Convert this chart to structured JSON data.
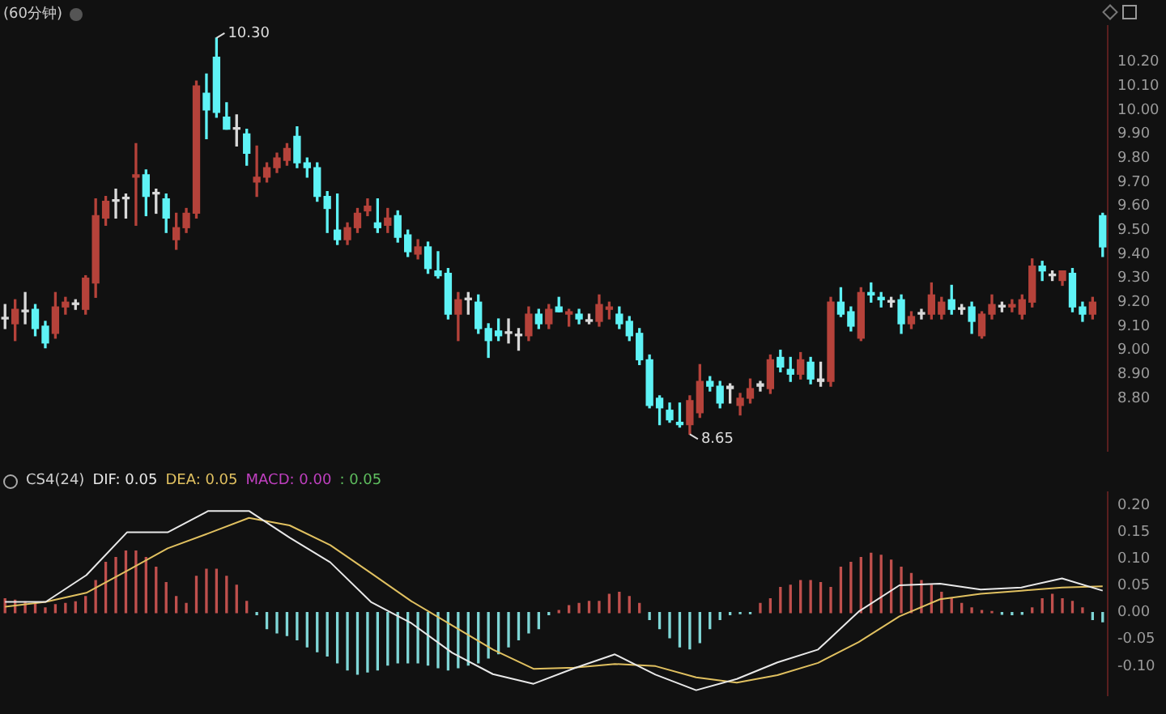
{
  "chart_data": [
    {
      "type": "candlestick",
      "title": "(60分钟)",
      "categories": [
        null,
        null,
        null,
        null,
        null,
        null,
        null,
        null,
        null,
        null,
        null,
        null,
        null,
        null,
        null,
        null,
        null,
        null,
        null,
        null,
        null,
        null,
        null,
        null,
        null,
        null,
        null,
        null,
        null,
        null,
        null,
        null,
        null,
        null,
        null,
        null,
        null,
        null,
        null,
        null,
        null,
        null,
        null,
        null,
        null,
        null,
        null,
        null,
        null,
        null,
        null,
        null,
        null,
        null,
        null,
        null,
        null,
        null,
        null,
        null,
        null,
        null,
        null,
        null,
        null,
        null,
        null,
        null,
        null,
        null,
        null,
        null,
        null,
        null,
        null,
        null,
        null,
        null,
        null,
        null,
        null,
        null,
        null,
        null,
        null,
        null,
        null,
        null,
        null,
        null,
        null,
        null,
        null,
        null,
        null,
        null,
        null,
        null,
        null,
        null,
        null,
        null,
        null,
        null,
        null,
        null,
        null,
        null,
        null,
        null
      ],
      "ohlc": [
        [
          9.13,
          9.19,
          9.09,
          9.13
        ],
        [
          9.11,
          9.21,
          9.04,
          9.17
        ],
        [
          9.16,
          9.24,
          9.11,
          9.16
        ],
        [
          9.17,
          9.19,
          9.06,
          9.09
        ],
        [
          9.1,
          9.12,
          9.01,
          9.03
        ],
        [
          9.07,
          9.24,
          9.05,
          9.18
        ],
        [
          9.18,
          9.22,
          9.15,
          9.2
        ],
        [
          9.19,
          9.21,
          9.17,
          9.19
        ],
        [
          9.17,
          9.31,
          9.15,
          9.3
        ],
        [
          9.28,
          9.63,
          9.22,
          9.56
        ],
        [
          9.55,
          9.64,
          9.52,
          9.62
        ],
        [
          9.62,
          9.67,
          9.55,
          9.62
        ],
        [
          9.63,
          9.65,
          9.55,
          9.63
        ],
        [
          9.72,
          9.86,
          9.52,
          9.73
        ],
        [
          9.73,
          9.75,
          9.56,
          9.64
        ],
        [
          9.65,
          9.67,
          9.57,
          9.65
        ],
        [
          9.63,
          9.65,
          9.49,
          9.55
        ],
        [
          9.46,
          9.57,
          9.42,
          9.51
        ],
        [
          9.51,
          9.59,
          9.49,
          9.57
        ],
        [
          9.57,
          10.12,
          9.55,
          10.1
        ],
        [
          10.07,
          10.15,
          9.88,
          10.0
        ],
        [
          10.22,
          10.3,
          9.97,
          9.99
        ],
        [
          9.97,
          10.03,
          9.92,
          9.92
        ],
        [
          9.92,
          9.98,
          9.85,
          9.92
        ],
        [
          9.9,
          9.92,
          9.77,
          9.82
        ],
        [
          9.7,
          9.85,
          9.64,
          9.72
        ],
        [
          9.72,
          9.78,
          9.7,
          9.76
        ],
        [
          9.76,
          9.82,
          9.74,
          9.8
        ],
        [
          9.79,
          9.86,
          9.77,
          9.84
        ],
        [
          9.89,
          9.93,
          9.76,
          9.78
        ],
        [
          9.78,
          9.8,
          9.72,
          9.76
        ],
        [
          9.76,
          9.78,
          9.62,
          9.64
        ],
        [
          9.64,
          9.66,
          9.49,
          9.59
        ],
        [
          9.5,
          9.65,
          9.44,
          9.46
        ],
        [
          9.46,
          9.53,
          9.44,
          9.51
        ],
        [
          9.51,
          9.59,
          9.49,
          9.57
        ],
        [
          9.58,
          9.63,
          9.56,
          9.6
        ],
        [
          9.53,
          9.63,
          9.49,
          9.51
        ],
        [
          9.52,
          9.59,
          9.49,
          9.55
        ],
        [
          9.56,
          9.58,
          9.45,
          9.47
        ],
        [
          9.48,
          9.5,
          9.39,
          9.41
        ],
        [
          9.4,
          9.46,
          9.38,
          9.43
        ],
        [
          9.43,
          9.45,
          9.32,
          9.34
        ],
        [
          9.33,
          9.41,
          9.3,
          9.31
        ],
        [
          9.32,
          9.34,
          9.13,
          9.15
        ],
        [
          9.15,
          9.24,
          9.04,
          9.21
        ],
        [
          9.21,
          9.24,
          9.15,
          9.21
        ],
        [
          9.2,
          9.23,
          9.07,
          9.09
        ],
        [
          9.09,
          9.11,
          8.97,
          9.04
        ],
        [
          9.08,
          9.13,
          9.04,
          9.06
        ],
        [
          9.07,
          9.13,
          9.03,
          9.07
        ],
        [
          9.06,
          9.09,
          9.0,
          9.06
        ],
        [
          9.06,
          9.18,
          9.04,
          9.15
        ],
        [
          9.15,
          9.17,
          9.09,
          9.11
        ],
        [
          9.11,
          9.19,
          9.09,
          9.17
        ],
        [
          9.18,
          9.22,
          9.16,
          9.16
        ],
        [
          9.15,
          9.17,
          9.1,
          9.16
        ],
        [
          9.15,
          9.17,
          9.11,
          9.13
        ],
        [
          9.12,
          9.15,
          9.11,
          9.12
        ],
        [
          9.12,
          9.23,
          9.1,
          9.19
        ],
        [
          9.17,
          9.2,
          9.13,
          9.18
        ],
        [
          9.15,
          9.18,
          9.09,
          9.11
        ],
        [
          9.12,
          9.14,
          9.04,
          9.06
        ],
        [
          9.07,
          9.09,
          8.94,
          8.96
        ],
        [
          8.96,
          8.98,
          8.76,
          8.77
        ],
        [
          8.8,
          8.81,
          8.69,
          8.76
        ],
        [
          8.75,
          8.78,
          8.7,
          8.71
        ],
        [
          8.7,
          8.78,
          8.68,
          8.69
        ],
        [
          8.69,
          8.81,
          8.65,
          8.79
        ],
        [
          8.74,
          8.94,
          8.72,
          8.87
        ],
        [
          8.87,
          8.89,
          8.83,
          8.85
        ],
        [
          8.85,
          8.87,
          8.76,
          8.78
        ],
        [
          8.84,
          8.86,
          8.78,
          8.85
        ],
        [
          8.77,
          8.82,
          8.73,
          8.8
        ],
        [
          8.8,
          8.88,
          8.78,
          8.84
        ],
        [
          8.85,
          8.87,
          8.83,
          8.86
        ],
        [
          8.84,
          8.98,
          8.82,
          8.96
        ],
        [
          8.97,
          9.0,
          8.91,
          8.93
        ],
        [
          8.92,
          8.97,
          8.87,
          8.9
        ],
        [
          8.9,
          8.99,
          8.88,
          8.96
        ],
        [
          8.95,
          8.97,
          8.86,
          8.88
        ],
        [
          8.87,
          8.95,
          8.85,
          8.88
        ],
        [
          8.87,
          9.22,
          8.85,
          9.2
        ],
        [
          9.2,
          9.26,
          9.14,
          9.15
        ],
        [
          9.16,
          9.18,
          9.08,
          9.1
        ],
        [
          9.05,
          9.26,
          9.04,
          9.24
        ],
        [
          9.24,
          9.28,
          9.2,
          9.23
        ],
        [
          9.22,
          9.24,
          9.18,
          9.21
        ],
        [
          9.2,
          9.22,
          9.18,
          9.2
        ],
        [
          9.21,
          9.23,
          9.07,
          9.11
        ],
        [
          9.11,
          9.16,
          9.09,
          9.14
        ],
        [
          9.15,
          9.17,
          9.13,
          9.15
        ],
        [
          9.15,
          9.28,
          9.13,
          9.23
        ],
        [
          9.15,
          9.22,
          9.13,
          9.2
        ],
        [
          9.21,
          9.27,
          9.15,
          9.17
        ],
        [
          9.17,
          9.19,
          9.15,
          9.17
        ],
        [
          9.18,
          9.2,
          9.07,
          9.12
        ],
        [
          9.06,
          9.16,
          9.05,
          9.15
        ],
        [
          9.15,
          9.23,
          9.13,
          9.19
        ],
        [
          9.18,
          9.2,
          9.16,
          9.18
        ],
        [
          9.18,
          9.21,
          9.16,
          9.19
        ],
        [
          9.15,
          9.23,
          9.13,
          9.21
        ],
        [
          9.2,
          9.38,
          9.18,
          9.35
        ],
        [
          9.35,
          9.37,
          9.29,
          9.33
        ],
        [
          9.31,
          9.33,
          9.29,
          9.31
        ],
        [
          9.29,
          9.33,
          9.27,
          9.33
        ],
        [
          9.32,
          9.34,
          9.16,
          9.18
        ],
        [
          9.18,
          9.2,
          9.12,
          9.15
        ],
        [
          9.15,
          9.22,
          9.13,
          9.2
        ],
        [
          9.56,
          9.57,
          9.39,
          9.43
        ]
      ],
      "colors": [
        "#d9d9d9",
        "#b5423a",
        "#d9d9d9",
        "#5ef2f5",
        "#5ef2f5",
        "#b5423a",
        "#b5423a",
        "#d9d9d9",
        "#b5423a",
        "#b5423a",
        "#b5423a",
        "#d9d9d9",
        "#d9d9d9",
        "#b5423a",
        "#5ef2f5",
        "#d9d9d9",
        "#5ef2f5",
        "#b5423a",
        "#b5423a",
        "#b5423a",
        "#5ef2f5",
        "#5ef2f5",
        "#5ef2f5",
        "#d9d9d9",
        "#5ef2f5",
        "#b5423a",
        "#b5423a",
        "#b5423a",
        "#b5423a",
        "#5ef2f5",
        "#5ef2f5",
        "#5ef2f5",
        "#5ef2f5",
        "#5ef2f5",
        "#b5423a",
        "#b5423a",
        "#b5423a",
        "#5ef2f5",
        "#b5423a",
        "#5ef2f5",
        "#5ef2f5",
        "#b5423a",
        "#5ef2f5",
        "#5ef2f5",
        "#5ef2f5",
        "#b5423a",
        "#d9d9d9",
        "#5ef2f5",
        "#5ef2f5",
        "#5ef2f5",
        "#d9d9d9",
        "#d9d9d9",
        "#b5423a",
        "#5ef2f5",
        "#b5423a",
        "#5ef2f5",
        "#b5423a",
        "#5ef2f5",
        "#d9d9d9",
        "#b5423a",
        "#b5423a",
        "#5ef2f5",
        "#5ef2f5",
        "#5ef2f5",
        "#5ef2f5",
        "#5ef2f5",
        "#5ef2f5",
        "#5ef2f5",
        "#b5423a",
        "#b5423a",
        "#5ef2f5",
        "#5ef2f5",
        "#d9d9d9",
        "#b5423a",
        "#b5423a",
        "#d9d9d9",
        "#b5423a",
        "#5ef2f5",
        "#5ef2f5",
        "#b5423a",
        "#5ef2f5",
        "#d9d9d9",
        "#b5423a",
        "#5ef2f5",
        "#5ef2f5",
        "#b5423a",
        "#5ef2f5",
        "#5ef2f5",
        "#d9d9d9",
        "#5ef2f5",
        "#b5423a",
        "#d9d9d9",
        "#b5423a",
        "#b5423a",
        "#5ef2f5",
        "#d9d9d9",
        "#5ef2f5",
        "#b5423a",
        "#b5423a",
        "#d9d9d9",
        "#b5423a",
        "#b5423a",
        "#b5423a",
        "#5ef2f5",
        "#d9d9d9",
        "#b5423a",
        "#5ef2f5",
        "#5ef2f5",
        "#b5423a",
        "#5ef2f5"
      ],
      "ylim": [
        8.58,
        10.35
      ],
      "yticks": [
        {
          "value": 8.8,
          "label": "8.80"
        },
        {
          "value": 8.9,
          "label": "8.90"
        },
        {
          "value": 9.0,
          "label": "9.00"
        },
        {
          "value": 9.1,
          "label": "9.10"
        },
        {
          "value": 9.2,
          "label": "9.20"
        },
        {
          "value": 9.3,
          "label": "9.30"
        },
        {
          "value": 9.4,
          "label": "9.40"
        },
        {
          "value": 9.5,
          "label": "9.50"
        },
        {
          "value": 9.6,
          "label": "9.60"
        },
        {
          "value": 9.7,
          "label": "9.70"
        },
        {
          "value": 9.8,
          "label": "9.80"
        },
        {
          "value": 9.9,
          "label": "9.90"
        },
        {
          "value": 10.0,
          "label": "10.00"
        },
        {
          "value": 10.1,
          "label": "10.10"
        },
        {
          "value": 10.2,
          "label": "10.20"
        }
      ],
      "grid": false,
      "tick_labels": "y",
      "annotations": [
        "10.30",
        "8.65"
      ]
    },
    {
      "type": "bar",
      "title": "CS4(24)",
      "annotations": [
        "MACD: 0.00",
        ": 0.05"
      ],
      "categories": [
        null,
        null,
        null,
        null,
        null,
        null,
        null,
        null,
        null,
        null,
        null,
        null,
        null,
        null,
        null,
        null,
        null,
        null,
        null,
        null,
        null,
        null,
        null,
        null,
        null,
        null,
        null,
        null,
        null,
        null,
        null,
        null,
        null,
        null,
        null,
        null,
        null,
        null,
        null,
        null,
        null,
        null,
        null,
        null,
        null,
        null,
        null,
        null,
        null,
        null,
        null,
        null,
        null,
        null,
        null,
        null,
        null,
        null,
        null,
        null,
        null,
        null,
        null,
        null,
        null,
        null,
        null,
        null,
        null,
        null,
        null,
        null,
        null,
        null,
        null,
        null,
        null,
        null,
        null,
        null,
        null,
        null,
        null,
        null,
        null,
        null,
        null,
        null,
        null,
        null,
        null,
        null,
        null,
        null,
        null,
        null,
        null,
        null,
        null,
        null,
        null,
        null,
        null,
        null,
        null,
        null,
        null,
        null,
        null,
        null
      ],
      "colors": [
        "#c0504d",
        "#c0504d",
        "#c0504d",
        "#c0504d",
        "#c0504d",
        "#c0504d",
        "#c0504d",
        "#c0504d",
        "#c0504d",
        "#c0504d",
        "#c0504d",
        "#c0504d",
        "#c0504d",
        "#c0504d",
        "#c0504d",
        "#c0504d",
        "#c0504d",
        "#c0504d",
        "#c0504d",
        "#c0504d",
        "#c0504d",
        "#c0504d",
        "#c0504d",
        "#c0504d",
        "#c0504d",
        "#7fd6d6",
        "#7fd6d6",
        "#7fd6d6",
        "#7fd6d6",
        "#7fd6d6",
        "#7fd6d6",
        "#7fd6d6",
        "#7fd6d6",
        "#7fd6d6",
        "#7fd6d6",
        "#7fd6d6",
        "#7fd6d6",
        "#7fd6d6",
        "#7fd6d6",
        "#7fd6d6",
        "#7fd6d6",
        "#7fd6d6",
        "#7fd6d6",
        "#7fd6d6",
        "#7fd6d6",
        "#7fd6d6",
        "#7fd6d6",
        "#7fd6d6",
        "#7fd6d6",
        "#7fd6d6",
        "#7fd6d6",
        "#7fd6d6",
        "#7fd6d6",
        "#7fd6d6",
        "#7fd6d6",
        "#c0504d",
        "#c0504d",
        "#c0504d",
        "#c0504d",
        "#c0504d",
        "#c0504d",
        "#c0504d",
        "#c0504d",
        "#c0504d",
        "#7fd6d6",
        "#7fd6d6",
        "#7fd6d6",
        "#7fd6d6",
        "#7fd6d6",
        "#7fd6d6",
        "#7fd6d6",
        "#7fd6d6",
        "#7fd6d6",
        "#7fd6d6",
        "#7fd6d6",
        "#c0504d",
        "#c0504d",
        "#c0504d",
        "#c0504d",
        "#c0504d",
        "#c0504d",
        "#c0504d",
        "#c0504d",
        "#c0504d",
        "#c0504d",
        "#c0504d",
        "#c0504d",
        "#c0504d",
        "#c0504d",
        "#c0504d",
        "#c0504d",
        "#c0504d",
        "#c0504d",
        "#c0504d",
        "#c0504d",
        "#c0504d",
        "#c0504d",
        "#c0504d",
        "#c0504d",
        "#7fd6d6",
        "#7fd6d6",
        "#7fd6d6",
        "#c0504d",
        "#c0504d",
        "#c0504d",
        "#c0504d",
        "#c0504d",
        "#c0504d",
        "#7fd6d6",
        "#7fd6d6"
      ],
      "values": [
        0.026,
        0.023,
        0.02,
        0.017,
        0.009,
        0.015,
        0.017,
        0.02,
        0.03,
        0.06,
        0.094,
        0.103,
        0.115,
        0.115,
        0.103,
        0.085,
        0.056,
        0.03,
        0.017,
        0.068,
        0.081,
        0.081,
        0.068,
        0.051,
        0.021,
        -0.004,
        -0.03,
        -0.038,
        -0.043,
        -0.051,
        -0.064,
        -0.073,
        -0.081,
        -0.094,
        -0.107,
        -0.115,
        -0.111,
        -0.107,
        -0.098,
        -0.094,
        -0.094,
        -0.094,
        -0.098,
        -0.103,
        -0.107,
        -0.103,
        -0.098,
        -0.094,
        -0.085,
        -0.077,
        -0.064,
        -0.051,
        -0.038,
        -0.03,
        -0.004,
        0.004,
        0.013,
        0.017,
        0.021,
        0.021,
        0.034,
        0.038,
        0.03,
        0.017,
        -0.013,
        -0.03,
        -0.047,
        -0.064,
        -0.068,
        -0.056,
        -0.03,
        -0.013,
        -0.004,
        -0.002,
        -0.002,
        0.017,
        0.026,
        0.047,
        0.051,
        0.06,
        0.06,
        0.056,
        0.047,
        0.085,
        0.094,
        0.103,
        0.111,
        0.107,
        0.098,
        0.085,
        0.073,
        0.06,
        0.051,
        0.038,
        0.026,
        0.017,
        0.009,
        0.004,
        0.002,
        -0.003,
        -0.004,
        -0.003,
        0.009,
        0.026,
        0.034,
        0.026,
        0.021,
        0.009,
        -0.013,
        -0.017
      ],
      "ylim": [
        -0.155,
        0.225
      ],
      "yticks": [
        {
          "value": -0.1,
          "label": "-0.10"
        },
        {
          "value": -0.05,
          "label": "-0.05"
        },
        {
          "value": 0,
          "label": "0.00"
        },
        {
          "value": 0.05,
          "label": "0.05"
        },
        {
          "value": 0.1,
          "label": "0.10"
        },
        {
          "value": 0.15,
          "label": "0.15"
        },
        {
          "value": 0.2,
          "label": "0.20"
        }
      ],
      "grid": false,
      "tick_labels": "y"
    },
    {
      "type": "line",
      "categories": [
        null,
        null,
        null,
        null,
        null,
        null,
        null,
        null,
        null,
        null,
        null,
        null,
        null,
        null,
        null,
        null,
        null,
        null,
        null,
        null,
        null,
        null,
        null,
        null,
        null,
        null,
        null,
        null
      ],
      "series": [
        {
          "name": "DIF: 0.05",
          "color": "#e8e8e8",
          "values": [
            0.02,
            0.02,
            0.07,
            0.15,
            0.15,
            0.19,
            0.19,
            0.14,
            0.094,
            0.02,
            -0.02,
            -0.075,
            -0.115,
            -0.133,
            -0.104,
            -0.078,
            -0.116,
            -0.145,
            -0.124,
            -0.093,
            -0.069,
            0.002,
            0.051,
            0.054,
            0.043,
            0.047,
            0.064,
            0.041
          ]
        },
        {
          "name": "DEA: 0.05",
          "color": "#e0c060",
          "values": [
            0.011,
            0.02,
            0.037,
            0.078,
            0.12,
            0.148,
            0.177,
            0.163,
            0.126,
            0.074,
            0.021,
            -0.024,
            -0.069,
            -0.105,
            -0.103,
            -0.096,
            -0.1,
            -0.121,
            -0.131,
            -0.117,
            -0.094,
            -0.055,
            -0.007,
            0.025,
            0.035,
            0.041,
            0.047,
            0.049
          ]
        }
      ],
      "ylim": [
        -0.155,
        0.225
      ],
      "grid": false,
      "tick_labels": false
    }
  ]
}
